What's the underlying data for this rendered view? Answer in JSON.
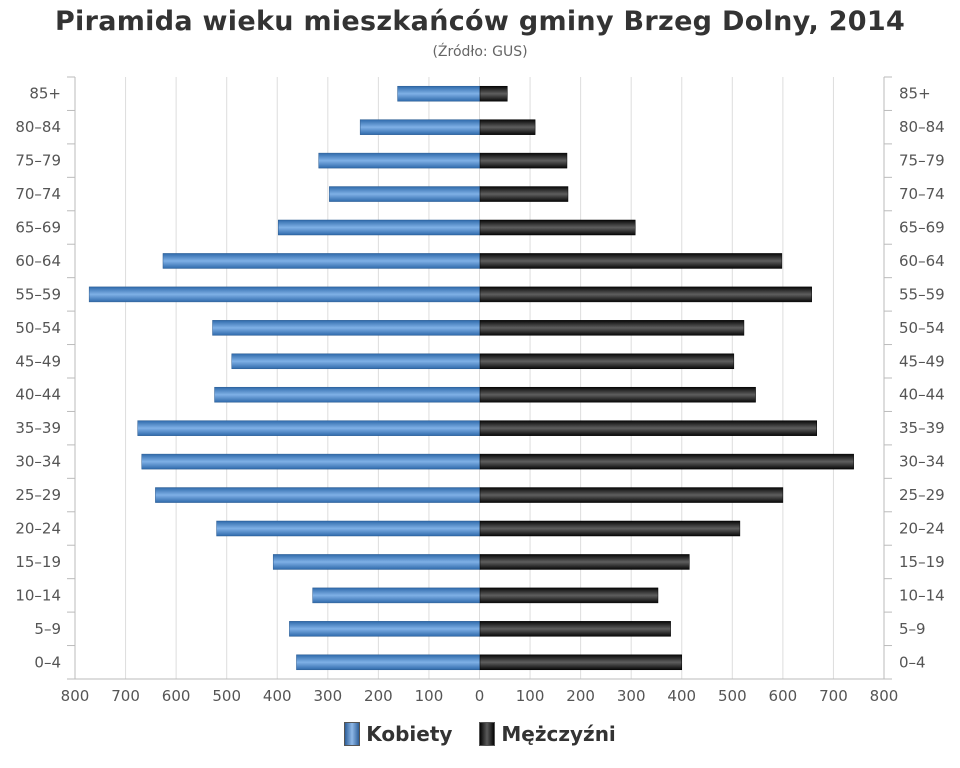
{
  "chart_data": {
    "type": "bar",
    "orientation": "horizontal-pyramid",
    "title": "Piramida wieku mieszkańców gminy Brzeg Dolny, 2014",
    "subtitle": "(Źródło: GUS)",
    "categories": [
      "85+",
      "80–84",
      "75–79",
      "70–74",
      "65–69",
      "60–64",
      "55–59",
      "50–54",
      "45–49",
      "40–44",
      "35–39",
      "30–34",
      "25–29",
      "20–24",
      "15–19",
      "10–14",
      "5–9",
      "0–4"
    ],
    "series": [
      {
        "name": "Kobiety",
        "color": "#4a86c8",
        "values": [
          162,
          236,
          318,
          297,
          398,
          626,
          772,
          528,
          490,
          524,
          676,
          668,
          641,
          520,
          408,
          330,
          376,
          362
        ]
      },
      {
        "name": "Mężczyźni",
        "color": "#1a1a1a",
        "values": [
          55,
          110,
          173,
          175,
          308,
          598,
          657,
          523,
          503,
          546,
          667,
          740,
          600,
          515,
          415,
          353,
          378,
          400
        ]
      }
    ],
    "xlim": [
      -800,
      800
    ],
    "x_ticks": [
      "800",
      "700",
      "600",
      "500",
      "400",
      "300",
      "200",
      "100",
      "0",
      "100",
      "200",
      "300",
      "400",
      "500",
      "600",
      "700",
      "800"
    ],
    "grid": true,
    "legend_position": "bottom-center"
  }
}
